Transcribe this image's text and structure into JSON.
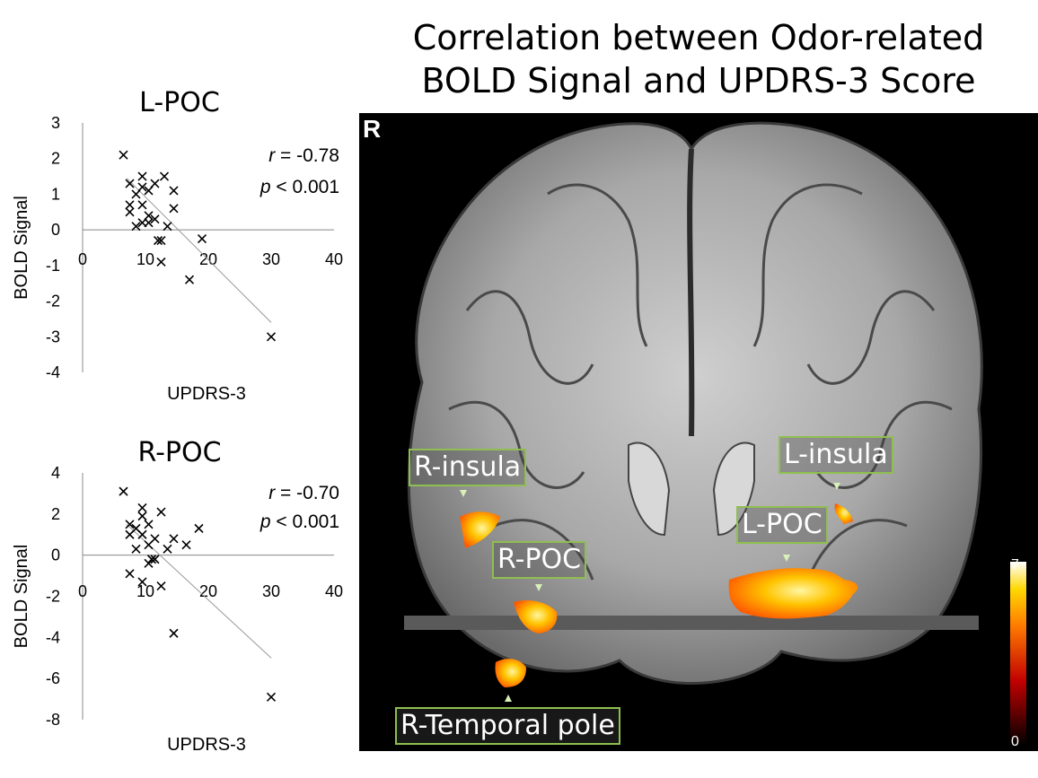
{
  "figure": {
    "title_line1": "Correlation between Odor-related",
    "title_line2": "BOLD Signal and UPDRS-3 Score",
    "orientation_marker": "R",
    "colors": {
      "accent_label_border": "#8fbf50",
      "activation_low": "#b00000",
      "activation_high": "#ffff80"
    }
  },
  "brain": {
    "labels": [
      {
        "id": "r-insula",
        "text": "R-insula"
      },
      {
        "id": "l-insula",
        "text": "L-insula"
      },
      {
        "id": "l-poc",
        "text": "L-POC"
      },
      {
        "id": "r-poc",
        "text": "R-POC"
      },
      {
        "id": "r-temporal-pole",
        "text": "R-Temporal pole"
      }
    ],
    "colorbar": {
      "min": "0",
      "max": "7"
    }
  },
  "chart_data": [
    {
      "type": "scatter",
      "title": "L-POC",
      "xlabel": "UPDRS-3",
      "ylabel": "BOLD Signal",
      "xlim": [
        0,
        40
      ],
      "ylim": [
        -4,
        3
      ],
      "xticks": [
        "0",
        "10",
        "20",
        "30",
        "40"
      ],
      "yticks": [
        "3",
        "2",
        "1",
        "0",
        "-1",
        "-2",
        "-3",
        "-4"
      ],
      "annotation_r": "-0.78",
      "annotation_p": "< 0.001",
      "trendline": {
        "x": [
          7,
          30
        ],
        "y": [
          1.45,
          -2.6
        ]
      },
      "points": [
        {
          "x": 6.5,
          "y": 2.1
        },
        {
          "x": 7.5,
          "y": 1.3
        },
        {
          "x": 7.5,
          "y": 0.7
        },
        {
          "x": 7.5,
          "y": 0.5
        },
        {
          "x": 8.5,
          "y": 1.0
        },
        {
          "x": 8.5,
          "y": 0.1
        },
        {
          "x": 9.5,
          "y": 1.5
        },
        {
          "x": 9.5,
          "y": 1.2
        },
        {
          "x": 9.5,
          "y": 0.7
        },
        {
          "x": 9.5,
          "y": 0.2
        },
        {
          "x": 10.5,
          "y": 1.1
        },
        {
          "x": 10.5,
          "y": 0.4
        },
        {
          "x": 10.5,
          "y": 0.2
        },
        {
          "x": 11.5,
          "y": 1.3
        },
        {
          "x": 11.5,
          "y": 0.3
        },
        {
          "x": 12,
          "y": -0.3
        },
        {
          "x": 12.5,
          "y": -0.3
        },
        {
          "x": 12.5,
          "y": -0.9
        },
        {
          "x": 13,
          "y": 1.5
        },
        {
          "x": 13.5,
          "y": 0.1
        },
        {
          "x": 14.5,
          "y": 1.1
        },
        {
          "x": 14.5,
          "y": 0.6
        },
        {
          "x": 17,
          "y": -1.4
        },
        {
          "x": 19,
          "y": -0.25
        },
        {
          "x": 30,
          "y": -3.0
        }
      ]
    },
    {
      "type": "scatter",
      "title": "R-POC",
      "xlabel": "UPDRS-3",
      "ylabel": "BOLD Signal",
      "xlim": [
        0,
        40
      ],
      "ylim": [
        -8,
        4
      ],
      "xticks": [
        "0",
        "10",
        "20",
        "30",
        "40"
      ],
      "yticks": [
        "4",
        "2",
        "0",
        "-2",
        "-4",
        "-6",
        "-8"
      ],
      "annotation_r": "-0.70",
      "annotation_p": "< 0.001",
      "trendline": {
        "x": [
          7,
          30
        ],
        "y": [
          1.5,
          -5.0
        ]
      },
      "points": [
        {
          "x": 6.5,
          "y": 3.1
        },
        {
          "x": 7.5,
          "y": 1.5
        },
        {
          "x": 7.5,
          "y": 1.0
        },
        {
          "x": 7.5,
          "y": -0.9
        },
        {
          "x": 8.5,
          "y": 1.3
        },
        {
          "x": 8.5,
          "y": 0.3
        },
        {
          "x": 9.5,
          "y": 2.3
        },
        {
          "x": 9.5,
          "y": 1.9
        },
        {
          "x": 9.5,
          "y": 1.0
        },
        {
          "x": 9.5,
          "y": -1.3
        },
        {
          "x": 10.5,
          "y": 1.5
        },
        {
          "x": 10.5,
          "y": 0.5
        },
        {
          "x": 10.5,
          "y": -0.4
        },
        {
          "x": 11,
          "y": -0.2
        },
        {
          "x": 11.5,
          "y": -0.2
        },
        {
          "x": 11.5,
          "y": 0.8
        },
        {
          "x": 12.5,
          "y": 2.1
        },
        {
          "x": 12.5,
          "y": -1.5
        },
        {
          "x": 13.5,
          "y": 0.3
        },
        {
          "x": 14.5,
          "y": 0.8
        },
        {
          "x": 16.5,
          "y": 0.5
        },
        {
          "x": 18.5,
          "y": 1.3
        },
        {
          "x": 14.5,
          "y": -3.8
        },
        {
          "x": 30,
          "y": -6.9
        }
      ]
    }
  ]
}
